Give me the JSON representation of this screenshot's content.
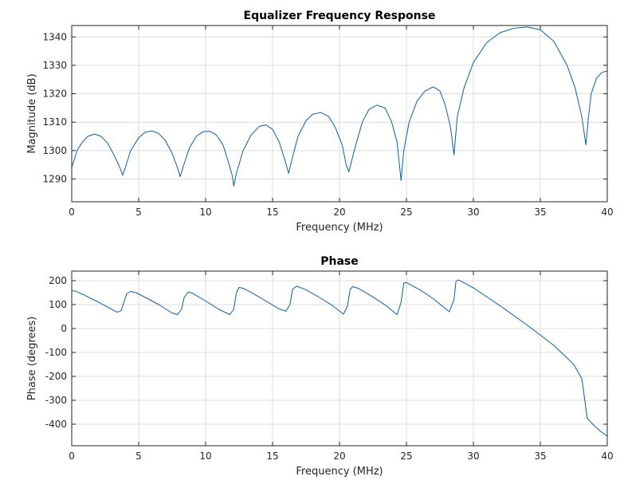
{
  "chart_data": [
    {
      "type": "line",
      "title": "Equalizer Frequency Response",
      "xlabel": "Frequency (MHz)",
      "ylabel": "Magnitude (dB)",
      "xlim": [
        0,
        40
      ],
      "ylim": [
        1282,
        1344
      ],
      "xticks": [
        0,
        5,
        10,
        15,
        20,
        25,
        30,
        35,
        40
      ],
      "yticks": [
        1290,
        1300,
        1310,
        1320,
        1330,
        1340
      ],
      "grid": true,
      "series": [
        {
          "color": "#0b5fa5",
          "x": [
            0,
            0.4,
            0.8,
            1.2,
            1.7,
            2.2,
            2.7,
            3.2,
            3.6,
            3.8,
            4.0,
            4.4,
            5.0,
            5.5,
            6.0,
            6.5,
            7.0,
            7.5,
            7.9,
            8.1,
            8.3,
            8.8,
            9.3,
            9.8,
            10.3,
            10.8,
            11.3,
            11.7,
            12.0,
            12.1,
            12.3,
            12.8,
            13.4,
            14.0,
            14.5,
            15.0,
            15.5,
            15.9,
            16.2,
            16.4,
            16.9,
            17.5,
            18.0,
            18.6,
            19.2,
            19.7,
            20.2,
            20.5,
            20.7,
            21.1,
            21.7,
            22.2,
            22.8,
            23.4,
            23.9,
            24.3,
            24.6,
            24.8,
            25.2,
            25.8,
            26.4,
            27.0,
            27.5,
            27.9,
            28.3,
            28.55,
            28.8,
            29.3,
            30.0,
            31.0,
            32.0,
            33.0,
            34.0,
            35.0,
            36.0,
            37.0,
            37.6,
            38.1,
            38.4,
            38.6,
            38.8,
            39.2,
            39.6,
            40.0
          ],
          "y": [
            1294,
            1300,
            1303,
            1305,
            1305.8,
            1305,
            1302.5,
            1298,
            1294,
            1291.3,
            1294,
            1300,
            1304.5,
            1306.5,
            1306.9,
            1306,
            1303.5,
            1299,
            1294,
            1290.8,
            1294,
            1301,
            1305,
            1306.6,
            1306.8,
            1305.5,
            1302,
            1296,
            1291,
            1287.5,
            1292,
            1300,
            1305.5,
            1308.5,
            1309,
            1307.5,
            1303,
            1297,
            1292,
            1296,
            1305,
            1310.5,
            1312.8,
            1313.4,
            1312,
            1308,
            1302,
            1295,
            1292.5,
            1300,
            1310,
            1314.5,
            1316,
            1315,
            1310,
            1303,
            1289.5,
            1300,
            1310,
            1317.5,
            1321,
            1322.4,
            1321,
            1316,
            1308,
            1298.5,
            1312,
            1322,
            1331,
            1338,
            1341.5,
            1343,
            1343.5,
            1342.5,
            1338.5,
            1330,
            1322,
            1312,
            1302,
            1312,
            1320,
            1325.5,
            1327.5,
            1328
          ]
        }
      ]
    },
    {
      "type": "line",
      "title": "Phase",
      "xlabel": "Frequency (MHz)",
      "ylabel": "Phase (degrees)",
      "xlim": [
        0,
        40
      ],
      "ylim": [
        -490,
        240
      ],
      "xticks": [
        0,
        5,
        10,
        15,
        20,
        25,
        30,
        35,
        40
      ],
      "yticks": [
        200,
        100,
        0,
        -100,
        -200,
        -300,
        -400
      ],
      "grid": true,
      "series": [
        {
          "color": "#0b5fa5",
          "x": [
            0,
            0.3,
            1.0,
            2.0,
            3.0,
            3.4,
            3.7,
            3.9,
            4.1,
            4.4,
            4.8,
            5.5,
            6.5,
            7.5,
            7.9,
            8.2,
            8.4,
            8.7,
            9.0,
            10.0,
            11.0,
            11.8,
            12.1,
            12.3,
            12.5,
            12.8,
            13.5,
            14.5,
            15.5,
            16.0,
            16.3,
            16.5,
            16.8,
            17.5,
            18.5,
            19.5,
            20.3,
            20.6,
            20.8,
            21.0,
            21.4,
            22.5,
            23.5,
            24.3,
            24.6,
            24.8,
            25.0,
            26.0,
            27.0,
            28.2,
            28.55,
            28.7,
            28.9,
            30.0,
            32.0,
            34.0,
            36.0,
            37.5,
            38.1,
            38.3,
            38.5,
            39.0,
            39.5,
            40.0
          ],
          "y": [
            158,
            156,
            138,
            110,
            80,
            68,
            75,
            110,
            145,
            155,
            150,
            130,
            100,
            65,
            58,
            80,
            130,
            152,
            148,
            115,
            80,
            58,
            80,
            150,
            172,
            168,
            148,
            115,
            82,
            72,
            100,
            165,
            177,
            162,
            130,
            95,
            60,
            95,
            165,
            175,
            168,
            132,
            95,
            58,
            110,
            190,
            192,
            162,
            125,
            70,
            120,
            198,
            203,
            170,
            95,
            15,
            -70,
            -150,
            -210,
            -290,
            -375,
            -405,
            -430,
            -450
          ]
        }
      ]
    }
  ]
}
